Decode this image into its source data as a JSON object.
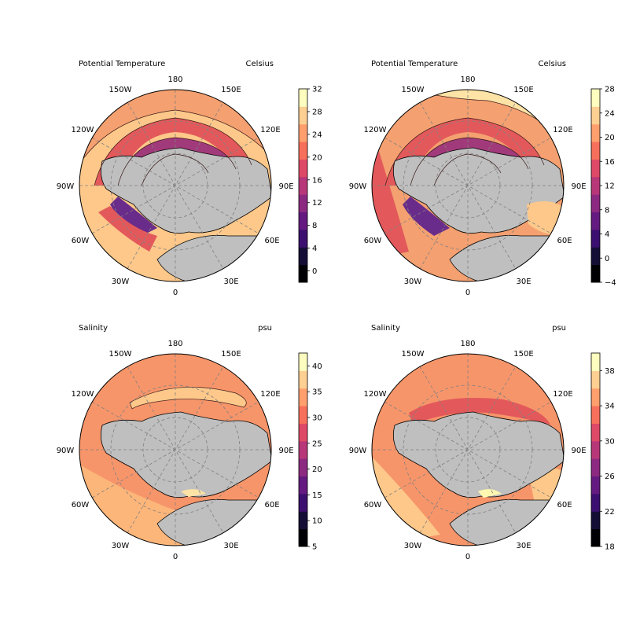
{
  "figure": {
    "panels": [
      {
        "id": "temp-1",
        "title": "Potential Temperature",
        "units": "Celsius",
        "colorbar": {
          "min": -2,
          "max": 32,
          "ticks": [
            "0",
            "4",
            "8",
            "12",
            "16",
            "20",
            "24",
            "28",
            "32"
          ],
          "tick_values": [
            0,
            4,
            8,
            12,
            16,
            20,
            24,
            28,
            32
          ]
        }
      },
      {
        "id": "temp-2",
        "title": "Potential Temperature",
        "units": "Celsius",
        "colorbar": {
          "min": -4,
          "max": 28,
          "ticks": [
            "−4",
            "0",
            "4",
            "8",
            "12",
            "16",
            "20",
            "24",
            "28"
          ],
          "tick_values": [
            -4,
            0,
            4,
            8,
            12,
            16,
            20,
            24,
            28
          ]
        }
      },
      {
        "id": "salt-1",
        "title": "Salinity",
        "units": "psu",
        "colorbar": {
          "min": 5,
          "max": 42.5,
          "ticks": [
            "5",
            "10",
            "15",
            "20",
            "25",
            "30",
            "35",
            "40"
          ],
          "tick_values": [
            5,
            10,
            15,
            20,
            25,
            30,
            35,
            40
          ]
        }
      },
      {
        "id": "salt-2",
        "title": "Salinity",
        "units": "psu",
        "colorbar": {
          "min": 18,
          "max": 40,
          "ticks": [
            "18",
            "22",
            "26",
            "30",
            "34",
            "38"
          ],
          "tick_values": [
            18,
            22,
            26,
            30,
            34,
            38
          ]
        }
      }
    ],
    "longitude_labels": [
      "180",
      "150E",
      "120E",
      "90E",
      "60E",
      "30E",
      "0",
      "30W",
      "60W",
      "90W",
      "120W",
      "150W"
    ],
    "colormap": "magma",
    "colors": {
      "land": "#bfbfbf",
      "contour_line": "#3a1a1a",
      "grid_line": "#808080"
    }
  }
}
